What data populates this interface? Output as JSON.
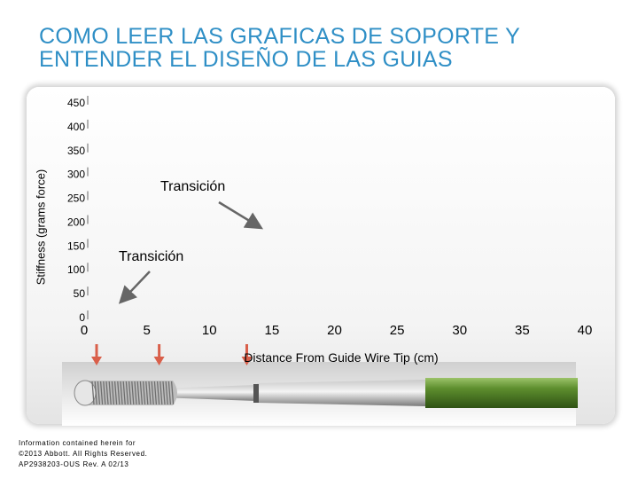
{
  "slide": {
    "title_line1": "COMO LEER LAS GRAFICAS DE SOPORTE Y",
    "title_line2": "ENTENDER EL DISEÑO DE LAS GUIAS",
    "footer_line1": "Information contained herein for",
    "footer_line2": "©2013 Abbott. All Rights Reserved.",
    "footer_line3": "AP2938203-OUS Rev. A 02/13"
  },
  "chart_data": {
    "type": "line",
    "title": "",
    "xlabel": "Distance From Guide Wire Tip (cm)",
    "ylabel": "Stiffness (grams force)",
    "x_ticks": [
      0,
      5,
      10,
      15,
      20,
      25,
      30,
      35,
      40
    ],
    "y_ticks": [
      0,
      50,
      100,
      150,
      200,
      250,
      300,
      350,
      400,
      450
    ],
    "xlim": [
      0,
      40
    ],
    "ylim": [
      0,
      450
    ],
    "series": [],
    "grid": false,
    "annotations": [
      {
        "text": "Transición",
        "arrow_x": 3,
        "arrow_y": 35
      },
      {
        "text": "Transición",
        "arrow_x": 14,
        "arrow_y": 190
      }
    ],
    "markers_x": [
      0,
      5,
      12
    ]
  },
  "colors": {
    "title": "#2f8fc6",
    "marker_arrow": "#d95f4a",
    "annotation_arrow": "#666666",
    "wire_shaft": "#4d7a23"
  },
  "icons": {
    "marker": "down-arrow-icon",
    "guide_wire": "guide-wire-diagram"
  }
}
